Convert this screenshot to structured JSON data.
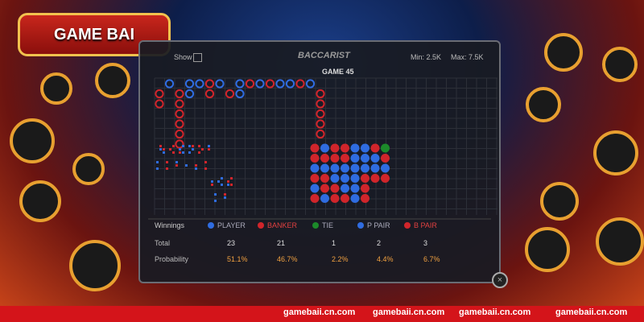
{
  "logo": {
    "title": "GAME BAI"
  },
  "panel": {
    "show_label": "Show",
    "title": "BACCARIST",
    "min": "Min: 2.5K",
    "max": "Max: 7.5K",
    "game": "GAME 45"
  },
  "stats": {
    "header": [
      "Winnings",
      "PLAYER",
      "BANKER",
      "TIE",
      "P PAIR",
      "B PAIR"
    ],
    "rows": [
      [
        "Total",
        "23",
        "21",
        "1",
        "2",
        "3"
      ],
      [
        "Probability",
        "51.1%",
        "46.7%",
        "2.2%",
        "4.4%",
        "6.7%"
      ]
    ]
  },
  "footer": {
    "links": [
      "gamebaii.cn.com",
      "gamebaii.cn.com",
      "gamebaii.cn.com",
      "gamebaii.cn.com"
    ]
  }
}
